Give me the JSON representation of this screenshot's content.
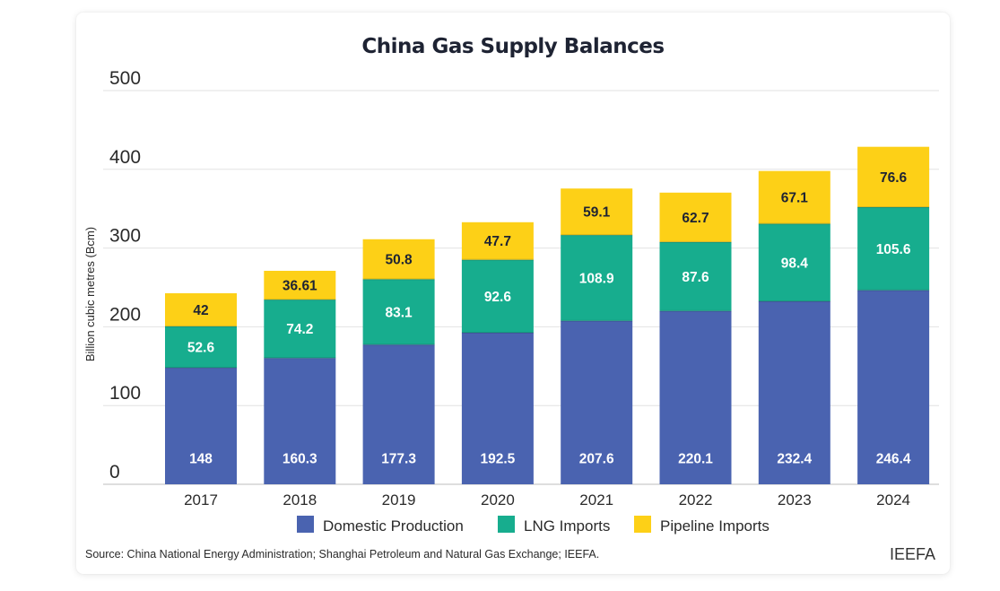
{
  "chart_data": {
    "type": "bar",
    "stacked": true,
    "title": "China Gas Supply Balances",
    "ylabel": "Billion cubic metres (Bcm)",
    "xlabel": "",
    "ylim": [
      0,
      500
    ],
    "yticks": [
      0,
      100,
      200,
      300,
      400,
      500
    ],
    "grid": true,
    "legend_position": "bottom",
    "categories": [
      "2017",
      "2018",
      "2019",
      "2020",
      "2021",
      "2022",
      "2023",
      "2024"
    ],
    "series": [
      {
        "name": "Domestic Production",
        "color": "#4a63b0",
        "label_color": "#ffffff",
        "values": [
          148,
          160.3,
          177.3,
          192.5,
          207.6,
          220.1,
          232.4,
          246.4
        ],
        "labels": [
          "148",
          "160.3",
          "177.3",
          "192.5",
          "207.6",
          "220.1",
          "232.4",
          "246.4"
        ]
      },
      {
        "name": "LNG Imports",
        "color": "#17ad8e",
        "label_color": "#ffffff",
        "values": [
          52.6,
          74.2,
          83.1,
          92.6,
          108.9,
          87.6,
          98.4,
          105.6
        ],
        "labels": [
          "52.6",
          "74.2",
          "83.1",
          "92.6",
          "108.9",
          "87.6",
          "98.4",
          "105.6"
        ]
      },
      {
        "name": "Pipeline Imports",
        "color": "#fdd017",
        "label_color": "#1e2333",
        "values": [
          42,
          36.61,
          50.8,
          47.7,
          59.1,
          62.7,
          67.1,
          76.6
        ],
        "labels": [
          "42",
          "36.61",
          "50.8",
          "47.7",
          "59.1",
          "62.7",
          "67.1",
          "76.6"
        ]
      }
    ]
  },
  "footer": {
    "source": "Source: China National Energy Administration; Shanghai Petroleum and Natural Gas Exchange; IEEFA.",
    "brand": "IEEFA"
  }
}
